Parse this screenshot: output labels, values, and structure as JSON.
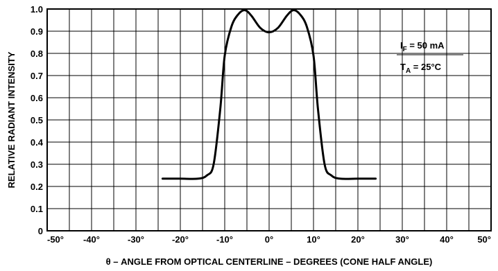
{
  "chart_data": {
    "type": "line",
    "xlabel": "θ – ANGLE FROM OPTICAL CENTERLINE – DEGREES (CONE HALF ANGLE)",
    "ylabel": "RELATIVE RADIANT INTENSITY",
    "xlim": [
      -50,
      50
    ],
    "ylim": [
      0,
      1.0
    ],
    "x_ticks": [
      "-50°",
      "-40°",
      "-30°",
      "-20°",
      "-10°",
      "0°",
      "10°",
      "20°",
      "30°",
      "40°",
      "50°"
    ],
    "y_ticks": [
      "0",
      "0.1",
      "0.2",
      "0.3",
      "0.4",
      "0.5",
      "0.6",
      "0.7",
      "0.8",
      "0.9",
      "1.0"
    ],
    "x_minor_gridlines_every": 5,
    "y_gridlines_every": 0.1,
    "grid": true,
    "series": [
      {
        "x": [
          -24,
          -20,
          -16,
          -14,
          -12.5,
          -11,
          -10,
          -8.5,
          -7,
          -5.5,
          -4,
          -2,
          0,
          2,
          4,
          5.5,
          7,
          8.5,
          10,
          11,
          12.5,
          14,
          16,
          20,
          24
        ],
        "y": [
          0.235,
          0.235,
          0.235,
          0.25,
          0.3,
          0.55,
          0.79,
          0.92,
          0.975,
          0.995,
          0.97,
          0.915,
          0.895,
          0.915,
          0.97,
          0.995,
          0.975,
          0.92,
          0.79,
          0.55,
          0.3,
          0.25,
          0.235,
          0.235,
          0.235
        ]
      }
    ],
    "annotations": {
      "if_main": "I",
      "if_sub": "F",
      "if_value": " = 50 mA",
      "ta_main": "T",
      "ta_sub": "A",
      "ta_value": " = 25°C"
    }
  }
}
